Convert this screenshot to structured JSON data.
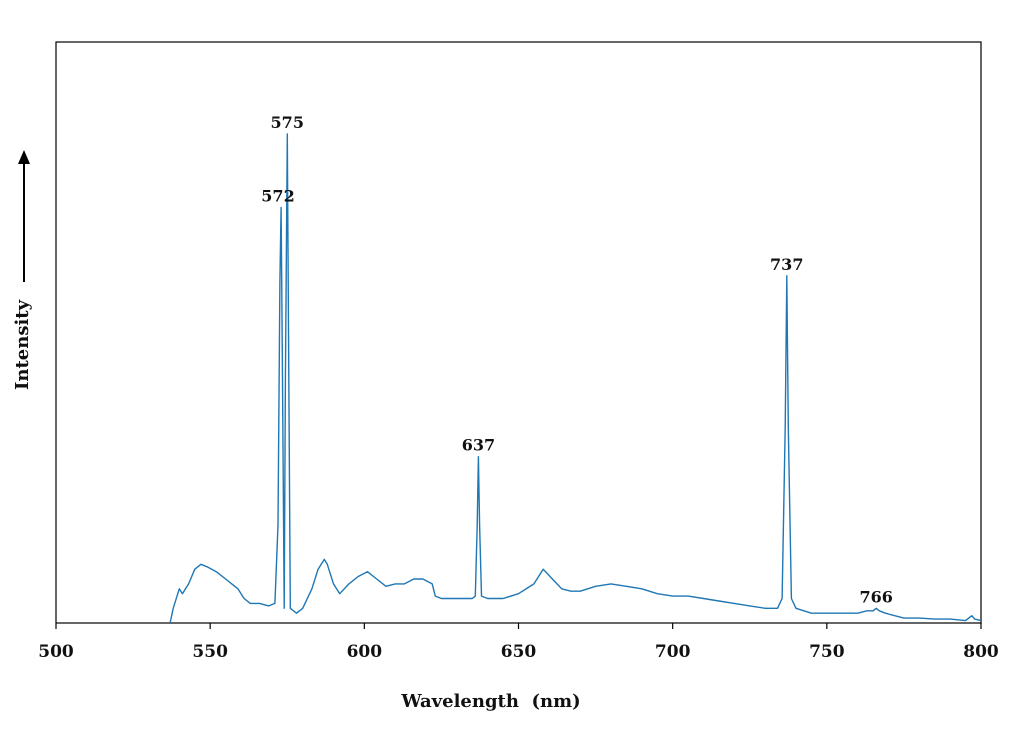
{
  "chart_data": {
    "type": "line",
    "title": "",
    "xlabel": "Wavelength  (nm)",
    "ylabel": "Intensity",
    "xlim": [
      500,
      800
    ],
    "ylim": [
      0,
      100
    ],
    "y_ticks_shown": false,
    "x_ticks": [
      500,
      550,
      600,
      650,
      700,
      750,
      800
    ],
    "x_tick_labels": [
      "500",
      "550",
      "600",
      "650",
      "700",
      "750",
      "800"
    ],
    "grid": false,
    "legend": "none",
    "line_color": "#1f77b4",
    "series": [
      {
        "x": [
          537,
          538,
          540,
          541,
          543,
          545,
          547,
          549,
          552,
          555,
          557,
          559,
          561,
          563,
          566,
          569,
          571,
          572,
          572.6,
          573,
          573.4,
          574,
          574.4,
          575,
          575.4,
          576,
          578,
          580,
          583,
          585,
          587,
          588,
          590,
          592,
          595,
          598,
          601,
          604,
          607,
          610,
          613,
          616,
          619,
          622,
          623,
          625,
          630,
          635,
          636,
          636.6,
          637,
          637.4,
          638,
          640,
          645,
          650,
          655,
          658,
          661,
          664,
          667,
          670,
          675,
          680,
          685,
          690,
          695,
          700,
          705,
          710,
          715,
          720,
          725,
          730,
          734,
          735.5,
          736.5,
          737,
          737.5,
          738.5,
          740,
          745,
          750,
          755,
          760,
          763,
          765,
          766,
          767,
          769,
          772,
          775,
          780,
          785,
          790,
          795,
          797,
          798,
          800
        ],
        "y": [
          0,
          3,
          7,
          6,
          8,
          11,
          12,
          11.5,
          10.5,
          9,
          8,
          7,
          5,
          4,
          4,
          3.5,
          4,
          20,
          70,
          85,
          55,
          3,
          50,
          100,
          60,
          3,
          2,
          3,
          7,
          11,
          13,
          12,
          8,
          6,
          8,
          9.5,
          10.5,
          9,
          7.5,
          8,
          8,
          9,
          9,
          8,
          5.5,
          5,
          5,
          5,
          5.5,
          20,
          34,
          20,
          5.5,
          5,
          5,
          6,
          8,
          11,
          9,
          7,
          6.5,
          6.5,
          7.5,
          8,
          7.5,
          7,
          6,
          5.5,
          5.5,
          5,
          4.5,
          4,
          3.5,
          3,
          3,
          5,
          40,
          71,
          40,
          5,
          3,
          2,
          2,
          2,
          2,
          2.5,
          2.5,
          3,
          2.5,
          2,
          1.5,
          1,
          1,
          0.8,
          0.8,
          0.5,
          1.5,
          0.8,
          0.5
        ]
      }
    ],
    "annotations": [
      {
        "text": "575",
        "x": 575,
        "y": 100
      },
      {
        "text": "572",
        "x": 572,
        "y": 85
      },
      {
        "text": "737",
        "x": 737,
        "y": 71
      },
      {
        "text": "637",
        "x": 637,
        "y": 34
      },
      {
        "text": "766",
        "x": 766,
        "y": 3
      }
    ]
  }
}
